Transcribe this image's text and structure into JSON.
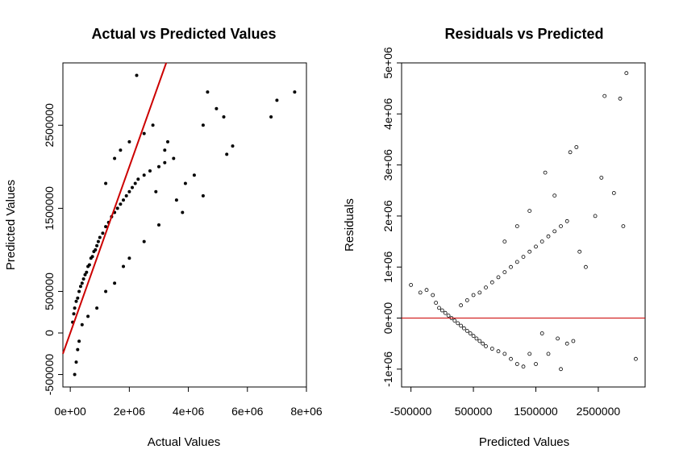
{
  "chart_data": [
    {
      "type": "scatter",
      "title": "Actual vs Predicted Values",
      "xlabel": "Actual Values",
      "ylabel": "Predicted Values",
      "xlim": [
        -250000,
        8000000
      ],
      "ylim": [
        -650000,
        3250000
      ],
      "x_ticks": [
        {
          "value": 0,
          "label": "0e+00"
        },
        {
          "value": 2000000,
          "label": "2e+06"
        },
        {
          "value": 4000000,
          "label": "4e+06"
        },
        {
          "value": 6000000,
          "label": "6e+06"
        },
        {
          "value": 8000000,
          "label": "8e+06"
        }
      ],
      "y_ticks": [
        {
          "value": -500000,
          "label": "-500000"
        },
        {
          "value": 0,
          "label": "0"
        },
        {
          "value": 500000,
          "label": "500000"
        },
        {
          "value": 1500000,
          "label": "1500000"
        },
        {
          "value": 2500000,
          "label": "2500000"
        }
      ],
      "point_color": "#000000",
      "point_style": "filled",
      "series": [
        {
          "values": [
            [
              80000,
              130000
            ],
            [
              120000,
              230000
            ],
            [
              150000,
              300000
            ],
            [
              200000,
              380000
            ],
            [
              250000,
              420000
            ],
            [
              300000,
              500000
            ],
            [
              350000,
              560000
            ],
            [
              400000,
              600000
            ],
            [
              450000,
              650000
            ],
            [
              500000,
              700000
            ],
            [
              550000,
              730000
            ],
            [
              600000,
              800000
            ],
            [
              650000,
              820000
            ],
            [
              700000,
              900000
            ],
            [
              750000,
              920000
            ],
            [
              800000,
              980000
            ],
            [
              850000,
              1000000
            ],
            [
              900000,
              1050000
            ],
            [
              950000,
              1100000
            ],
            [
              1000000,
              1150000
            ],
            [
              1100000,
              1200000
            ],
            [
              1200000,
              1280000
            ],
            [
              1300000,
              1330000
            ],
            [
              1400000,
              1400000
            ],
            [
              1500000,
              1450000
            ],
            [
              1600000,
              1500000
            ],
            [
              1700000,
              1550000
            ],
            [
              1800000,
              1600000
            ],
            [
              1900000,
              1650000
            ],
            [
              2000000,
              1700000
            ],
            [
              2100000,
              1750000
            ],
            [
              2200000,
              1800000
            ],
            [
              2300000,
              1850000
            ],
            [
              2500000,
              1900000
            ],
            [
              2700000,
              1950000
            ],
            [
              3000000,
              2000000
            ],
            [
              3200000,
              2050000
            ],
            [
              3500000,
              2100000
            ],
            [
              1200000,
              1800000
            ],
            [
              1500000,
              2100000
            ],
            [
              1700000,
              2200000
            ],
            [
              2000000,
              2300000
            ],
            [
              2500000,
              2400000
            ],
            [
              2800000,
              2500000
            ],
            [
              3300000,
              2300000
            ],
            [
              3900000,
              1800000
            ],
            [
              4500000,
              1650000
            ],
            [
              3000000,
              1300000
            ],
            [
              2500000,
              1100000
            ],
            [
              2000000,
              900000
            ],
            [
              1800000,
              800000
            ],
            [
              1500000,
              600000
            ],
            [
              1200000,
              500000
            ],
            [
              900000,
              300000
            ],
            [
              600000,
              200000
            ],
            [
              400000,
              100000
            ],
            [
              300000,
              -100000
            ],
            [
              250000,
              -200000
            ],
            [
              200000,
              -350000
            ],
            [
              150000,
              -500000
            ],
            [
              2250000,
              3100000
            ],
            [
              4650000,
              2900000
            ],
            [
              4950000,
              2700000
            ],
            [
              5200000,
              2600000
            ],
            [
              5300000,
              2150000
            ],
            [
              5500000,
              2250000
            ],
            [
              6800000,
              2600000
            ],
            [
              7000000,
              2800000
            ],
            [
              7600000,
              2900000
            ],
            [
              4500000,
              2500000
            ],
            [
              3200000,
              2200000
            ],
            [
              2900000,
              1700000
            ],
            [
              3600000,
              1600000
            ],
            [
              4200000,
              1900000
            ],
            [
              3800000,
              1450000
            ]
          ]
        }
      ],
      "reference_line": {
        "color": "#cc0000",
        "slope": 1,
        "intercept": 0
      }
    },
    {
      "type": "scatter",
      "title": "Residuals vs Predicted",
      "xlabel": "Predicted Values",
      "ylabel": "Residuals",
      "xlim": [
        -650000,
        3250000
      ],
      "ylim": [
        -1350000,
        5000000
      ],
      "x_ticks": [
        {
          "value": -500000,
          "label": "-500000"
        },
        {
          "value": 500000,
          "label": "500000"
        },
        {
          "value": 1500000,
          "label": "1500000"
        },
        {
          "value": 2500000,
          "label": "2500000"
        }
      ],
      "y_ticks": [
        {
          "value": -1000000,
          "label": "-1e+06"
        },
        {
          "value": 0,
          "label": "0e+00"
        },
        {
          "value": 1000000,
          "label": "1e+06"
        },
        {
          "value": 2000000,
          "label": "2e+06"
        },
        {
          "value": 3000000,
          "label": "3e+06"
        },
        {
          "value": 4000000,
          "label": "4e+06"
        },
        {
          "value": 5000000,
          "label": "5e+06"
        }
      ],
      "point_color": "#000000",
      "point_style": "open",
      "series": [
        {
          "values": [
            [
              -500000,
              650000
            ],
            [
              -350000,
              500000
            ],
            [
              -250000,
              550000
            ],
            [
              -150000,
              450000
            ],
            [
              -100000,
              300000
            ],
            [
              -50000,
              200000
            ],
            [
              0,
              150000
            ],
            [
              50000,
              100000
            ],
            [
              100000,
              50000
            ],
            [
              150000,
              0
            ],
            [
              200000,
              -50000
            ],
            [
              250000,
              -100000
            ],
            [
              300000,
              -150000
            ],
            [
              350000,
              -200000
            ],
            [
              400000,
              -250000
            ],
            [
              450000,
              -300000
            ],
            [
              500000,
              -350000
            ],
            [
              550000,
              -400000
            ],
            [
              600000,
              -450000
            ],
            [
              650000,
              -500000
            ],
            [
              700000,
              -550000
            ],
            [
              800000,
              -600000
            ],
            [
              900000,
              -650000
            ],
            [
              1000000,
              -700000
            ],
            [
              1100000,
              -800000
            ],
            [
              1200000,
              -900000
            ],
            [
              1300000,
              -950000
            ],
            [
              300000,
              250000
            ],
            [
              400000,
              350000
            ],
            [
              500000,
              450000
            ],
            [
              600000,
              500000
            ],
            [
              700000,
              600000
            ],
            [
              800000,
              700000
            ],
            [
              900000,
              800000
            ],
            [
              1000000,
              900000
            ],
            [
              1100000,
              1000000
            ],
            [
              1200000,
              1100000
            ],
            [
              1300000,
              1200000
            ],
            [
              1400000,
              1300000
            ],
            [
              1500000,
              1400000
            ],
            [
              1600000,
              1500000
            ],
            [
              1700000,
              1600000
            ],
            [
              1800000,
              1700000
            ],
            [
              1900000,
              1800000
            ],
            [
              2000000,
              1900000
            ],
            [
              1650000,
              2850000
            ],
            [
              1800000,
              2400000
            ],
            [
              2050000,
              3250000
            ],
            [
              2150000,
              3350000
            ],
            [
              2450000,
              2000000
            ],
            [
              2550000,
              2750000
            ],
            [
              2600000,
              4350000
            ],
            [
              2750000,
              2450000
            ],
            [
              2850000,
              4300000
            ],
            [
              2900000,
              1800000
            ],
            [
              2950000,
              4800000
            ],
            [
              3100000,
              -800000
            ],
            [
              2000000,
              -500000
            ],
            [
              1900000,
              -1000000
            ],
            [
              2100000,
              -450000
            ],
            [
              1500000,
              -900000
            ],
            [
              1700000,
              -700000
            ],
            [
              1850000,
              -400000
            ],
            [
              1400000,
              -700000
            ],
            [
              1600000,
              -300000
            ],
            [
              2300000,
              1000000
            ],
            [
              2200000,
              1300000
            ],
            [
              1000000,
              1500000
            ],
            [
              1200000,
              1800000
            ],
            [
              1400000,
              2100000
            ]
          ]
        }
      ],
      "reference_line": {
        "color": "#cc0000",
        "y": 0
      }
    }
  ]
}
